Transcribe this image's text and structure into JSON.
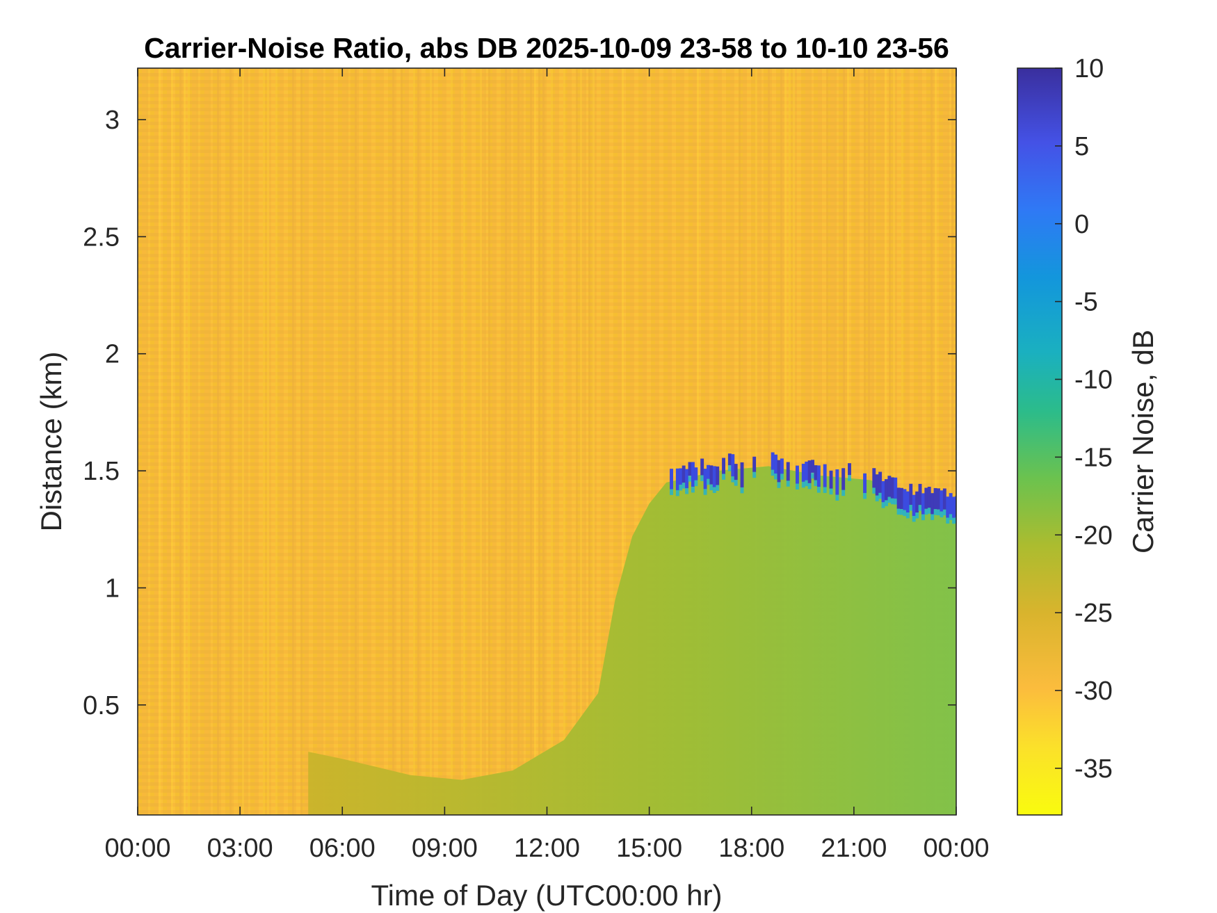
{
  "chart_data": {
    "type": "heatmap",
    "title": "Carrier-Noise Ratio, abs DB 2025-10-09 23-58 to 10-10 23-56",
    "xlabel": "Time of Day (UTC00:00 hr)",
    "ylabel": "Distance (km)",
    "colorbar_label": "Carrier Noise, dB",
    "xlim": [
      0,
      24
    ],
    "ylim": [
      0.03,
      3.22
    ],
    "clim": [
      -38,
      10
    ],
    "x_ticks": [
      {
        "value": 0,
        "label": "00:00"
      },
      {
        "value": 3,
        "label": "03:00"
      },
      {
        "value": 6,
        "label": "06:00"
      },
      {
        "value": 9,
        "label": "09:00"
      },
      {
        "value": 12,
        "label": "12:00"
      },
      {
        "value": 15,
        "label": "15:00"
      },
      {
        "value": 18,
        "label": "18:00"
      },
      {
        "value": 21,
        "label": "21:00"
      },
      {
        "value": 24,
        "label": "00:00"
      }
    ],
    "y_ticks": [
      {
        "value": 0.5,
        "label": "0.5"
      },
      {
        "value": 1,
        "label": "1"
      },
      {
        "value": 1.5,
        "label": "1.5"
      },
      {
        "value": 2,
        "label": "2"
      },
      {
        "value": 2.5,
        "label": "2.5"
      },
      {
        "value": 3,
        "label": "3"
      }
    ],
    "colorbar_ticks": [
      {
        "value": 10,
        "label": "10"
      },
      {
        "value": 5,
        "label": "5"
      },
      {
        "value": 0,
        "label": "0"
      },
      {
        "value": -5,
        "label": "-5"
      },
      {
        "value": -10,
        "label": "-10"
      },
      {
        "value": -15,
        "label": "-15"
      },
      {
        "value": -20,
        "label": "-20"
      },
      {
        "value": -25,
        "label": "-25"
      },
      {
        "value": -30,
        "label": "-30"
      },
      {
        "value": -35,
        "label": "-35"
      }
    ],
    "background_value_db": -30,
    "mixed_layer_top_km": [
      {
        "time": 5.0,
        "height": 0.3
      },
      {
        "time": 6.0,
        "height": 0.27
      },
      {
        "time": 8.0,
        "height": 0.2
      },
      {
        "time": 9.5,
        "height": 0.18
      },
      {
        "time": 11.0,
        "height": 0.22
      },
      {
        "time": 12.5,
        "height": 0.35
      },
      {
        "time": 13.5,
        "height": 0.55
      },
      {
        "time": 14.0,
        "height": 0.95
      },
      {
        "time": 14.5,
        "height": 1.22
      },
      {
        "time": 15.0,
        "height": 1.36
      },
      {
        "time": 15.5,
        "height": 1.45
      },
      {
        "time": 17.0,
        "height": 1.5
      },
      {
        "time": 18.5,
        "height": 1.52
      },
      {
        "time": 20.0,
        "height": 1.48
      },
      {
        "time": 21.5,
        "height": 1.46
      },
      {
        "time": 22.5,
        "height": 1.38
      },
      {
        "time": 24.0,
        "height": 1.36
      }
    ],
    "mixed_layer_value_db": -20,
    "cloud_top_value_db": 5,
    "colormap": [
      "#f9fb0e",
      "#fbbc3d",
      "#c9b42b",
      "#8dbf3c",
      "#3fbc73",
      "#21b5b5",
      "#0d9fd9",
      "#2f7cf3",
      "#3e4fe0",
      "#3b2fa0"
    ]
  }
}
